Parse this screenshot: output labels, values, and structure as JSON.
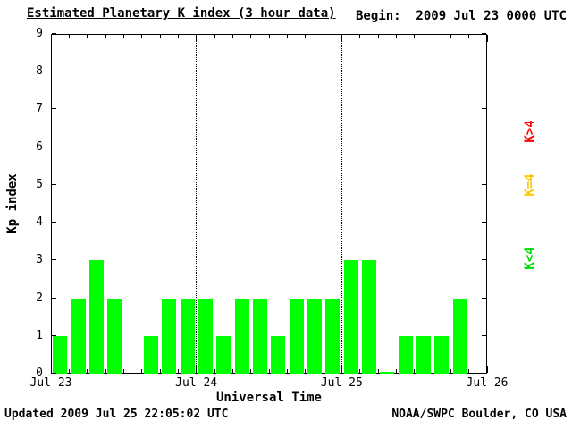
{
  "header": {
    "title": "Estimated Planetary K index (3 hour data)",
    "begin_label": "Begin:  2009 Jul 23 0000 UTC"
  },
  "axes": {
    "ylabel": "Kp index",
    "xlabel": "Universal Time"
  },
  "footer": {
    "updated": "Updated 2009 Jul 25 22:05:02 UTC",
    "source": "NOAA/SWPC Boulder, CO USA"
  },
  "legend": {
    "items": [
      {
        "label": "K>4",
        "color": "#ff0000"
      },
      {
        "label": "K=4",
        "color": "#ffc800"
      },
      {
        "label": "K<4",
        "color": "#00dd00"
      }
    ]
  },
  "chart_data": {
    "type": "bar",
    "title": "Estimated Planetary K index (3 hour data)",
    "begin": "2009 Jul 23 0000 UTC",
    "interval_hours": 3,
    "bar_color": "#00ff00",
    "ylim": [
      0,
      9
    ],
    "y_ticks": [
      0,
      1,
      2,
      3,
      4,
      5,
      6,
      7,
      8,
      9
    ],
    "x_tick_labels": [
      "Jul 23",
      "Jul 24",
      "Jul 25",
      "Jul 26"
    ],
    "gridline_x_ticks": [
      1,
      2
    ],
    "days": [
      {
        "date": "2009 Jul 23",
        "kp": [
          1,
          2,
          3,
          2,
          null,
          1,
          2,
          2
        ]
      },
      {
        "date": "2009 Jul 24",
        "kp": [
          2,
          1,
          2,
          2,
          1,
          2,
          2,
          2
        ]
      },
      {
        "date": "2009 Jul 25",
        "kp": [
          3,
          3,
          0,
          1,
          1,
          1,
          2,
          null
        ]
      }
    ],
    "values": [
      1,
      2,
      3,
      2,
      null,
      1,
      2,
      2,
      2,
      1,
      2,
      2,
      1,
      2,
      2,
      2,
      3,
      3,
      0,
      1,
      1,
      1,
      2,
      null
    ]
  }
}
